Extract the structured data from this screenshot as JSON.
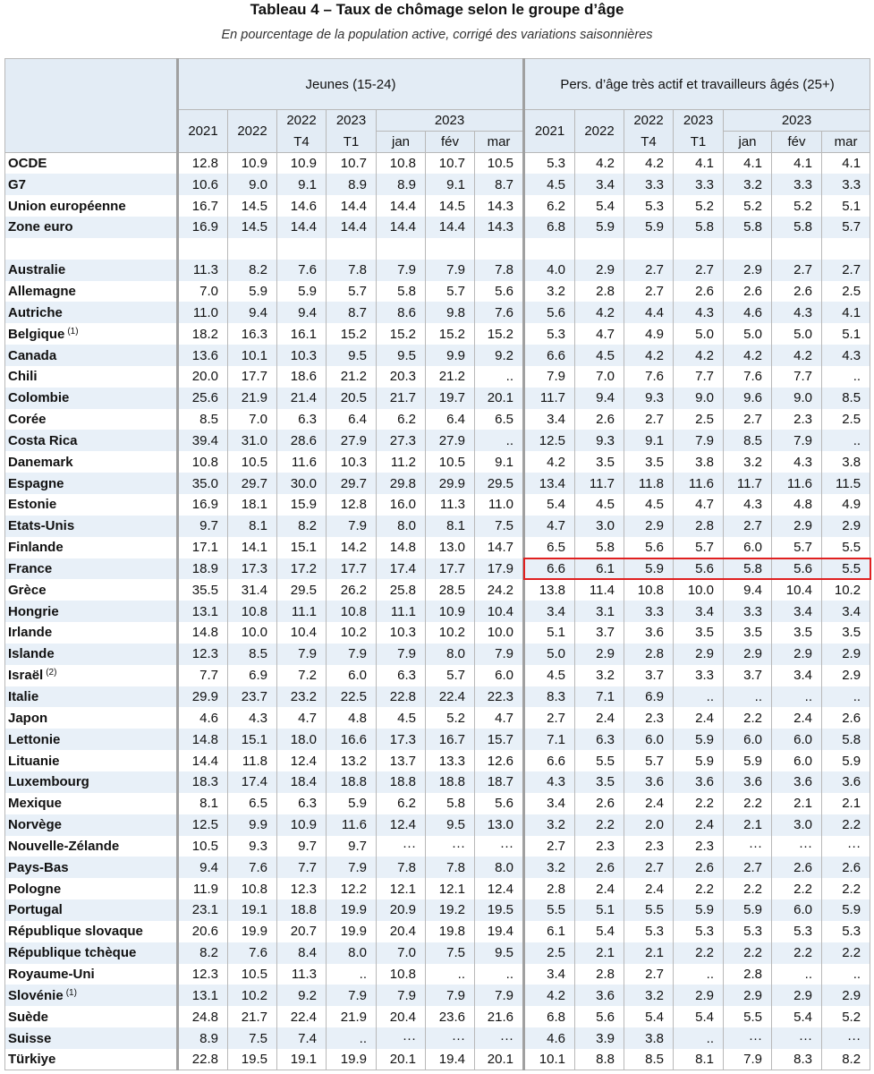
{
  "header": {
    "title": "Tableau 4 – Taux de chômage selon le groupe d’âge",
    "subtitle": "En pourcentage de la population active, corrigé des variations saisonnières"
  },
  "table": {
    "groups": [
      {
        "label": "Jeunes (15-24)",
        "columns": [
          {
            "year": "2021"
          },
          {
            "year": "2022"
          },
          {
            "year": "2022",
            "period": "T4"
          },
          {
            "year": "2023",
            "period": "T1"
          },
          {
            "year": "2023",
            "months": [
              "jan",
              "fév",
              "mar"
            ]
          }
        ]
      },
      {
        "label": "Pers. d’âge très actif et travailleurs âgés (25+)",
        "columns": [
          {
            "year": "2021"
          },
          {
            "year": "2022"
          },
          {
            "year": "2022",
            "period": "T4"
          },
          {
            "year": "2023",
            "period": "T1"
          },
          {
            "year": "2023",
            "months": [
              "jan",
              "fév",
              "mar"
            ]
          }
        ]
      }
    ],
    "aggregates": [
      {
        "label": "OCDE",
        "values": [
          "12.8",
          "10.9",
          "10.9",
          "10.7",
          "10.8",
          "10.7",
          "10.5",
          "5.3",
          "4.2",
          "4.2",
          "4.1",
          "4.1",
          "4.1",
          "4.1"
        ]
      },
      {
        "label": "G7",
        "values": [
          "10.6",
          "9.0",
          "9.1",
          "8.9",
          "8.9",
          "9.1",
          "8.7",
          "4.5",
          "3.4",
          "3.3",
          "3.3",
          "3.2",
          "3.3",
          "3.3"
        ]
      },
      {
        "label": "Union européenne",
        "values": [
          "16.7",
          "14.5",
          "14.6",
          "14.4",
          "14.4",
          "14.5",
          "14.3",
          "6.2",
          "5.4",
          "5.3",
          "5.2",
          "5.2",
          "5.2",
          "5.1"
        ]
      },
      {
        "label": "Zone euro",
        "values": [
          "16.9",
          "14.5",
          "14.4",
          "14.4",
          "14.4",
          "14.4",
          "14.3",
          "6.8",
          "5.9",
          "5.9",
          "5.8",
          "5.8",
          "5.8",
          "5.7"
        ]
      }
    ],
    "countries": [
      {
        "label": "Australie",
        "values": [
          "11.3",
          "8.2",
          "7.6",
          "7.8",
          "7.9",
          "7.9",
          "7.8",
          "4.0",
          "2.9",
          "2.7",
          "2.7",
          "2.9",
          "2.7",
          "2.7"
        ]
      },
      {
        "label": "Allemagne",
        "values": [
          "7.0",
          "5.9",
          "5.9",
          "5.7",
          "5.8",
          "5.7",
          "5.6",
          "3.2",
          "2.8",
          "2.7",
          "2.6",
          "2.6",
          "2.6",
          "2.5"
        ]
      },
      {
        "label": "Autriche",
        "values": [
          "11.0",
          "9.4",
          "9.4",
          "8.7",
          "8.6",
          "9.8",
          "7.6",
          "5.6",
          "4.2",
          "4.4",
          "4.3",
          "4.6",
          "4.3",
          "4.1"
        ]
      },
      {
        "label": "Belgique",
        "note": "(1)",
        "values": [
          "18.2",
          "16.3",
          "16.1",
          "15.2",
          "15.2",
          "15.2",
          "15.2",
          "5.3",
          "4.7",
          "4.9",
          "5.0",
          "5.0",
          "5.0",
          "5.1"
        ]
      },
      {
        "label": "Canada",
        "values": [
          "13.6",
          "10.1",
          "10.3",
          "9.5",
          "9.5",
          "9.9",
          "9.2",
          "6.6",
          "4.5",
          "4.2",
          "4.2",
          "4.2",
          "4.2",
          "4.3"
        ]
      },
      {
        "label": "Chili",
        "values": [
          "20.0",
          "17.7",
          "18.6",
          "21.2",
          "20.3",
          "21.2",
          "..",
          "7.9",
          "7.0",
          "7.6",
          "7.7",
          "7.6",
          "7.7",
          ".."
        ]
      },
      {
        "label": "Colombie",
        "values": [
          "25.6",
          "21.9",
          "21.4",
          "20.5",
          "21.7",
          "19.7",
          "20.1",
          "11.7",
          "9.4",
          "9.3",
          "9.0",
          "9.6",
          "9.0",
          "8.5"
        ]
      },
      {
        "label": "Corée",
        "values": [
          "8.5",
          "7.0",
          "6.3",
          "6.4",
          "6.2",
          "6.4",
          "6.5",
          "3.4",
          "2.6",
          "2.7",
          "2.5",
          "2.7",
          "2.3",
          "2.5"
        ]
      },
      {
        "label": "Costa Rica",
        "values": [
          "39.4",
          "31.0",
          "28.6",
          "27.9",
          "27.3",
          "27.9",
          "..",
          "12.5",
          "9.3",
          "9.1",
          "7.9",
          "8.5",
          "7.9",
          ".."
        ]
      },
      {
        "label": "Danemark",
        "values": [
          "10.8",
          "10.5",
          "11.6",
          "10.3",
          "11.2",
          "10.5",
          "9.1",
          "4.2",
          "3.5",
          "3.5",
          "3.8",
          "3.2",
          "4.3",
          "3.8"
        ]
      },
      {
        "label": "Espagne",
        "values": [
          "35.0",
          "29.7",
          "30.0",
          "29.7",
          "29.8",
          "29.9",
          "29.5",
          "13.4",
          "11.7",
          "11.8",
          "11.6",
          "11.7",
          "11.6",
          "11.5"
        ]
      },
      {
        "label": "Estonie",
        "values": [
          "16.9",
          "18.1",
          "15.9",
          "12.8",
          "16.0",
          "11.3",
          "11.0",
          "5.4",
          "4.5",
          "4.5",
          "4.7",
          "4.3",
          "4.8",
          "4.9"
        ]
      },
      {
        "label": "Etats-Unis",
        "values": [
          "9.7",
          "8.1",
          "8.2",
          "7.9",
          "8.0",
          "8.1",
          "7.5",
          "4.7",
          "3.0",
          "2.9",
          "2.8",
          "2.7",
          "2.9",
          "2.9"
        ]
      },
      {
        "label": "Finlande",
        "values": [
          "17.1",
          "14.1",
          "15.1",
          "14.2",
          "14.8",
          "13.0",
          "14.7",
          "6.5",
          "5.8",
          "5.6",
          "5.7",
          "6.0",
          "5.7",
          "5.5"
        ]
      },
      {
        "label": "France",
        "values": [
          "18.9",
          "17.3",
          "17.2",
          "17.7",
          "17.4",
          "17.7",
          "17.9",
          "6.6",
          "6.1",
          "5.9",
          "5.6",
          "5.8",
          "5.6",
          "5.5"
        ]
      },
      {
        "label": "Grèce",
        "values": [
          "35.5",
          "31.4",
          "29.5",
          "26.2",
          "25.8",
          "28.5",
          "24.2",
          "13.8",
          "11.4",
          "10.8",
          "10.0",
          "9.4",
          "10.4",
          "10.2"
        ]
      },
      {
        "label": "Hongrie",
        "values": [
          "13.1",
          "10.8",
          "11.1",
          "10.8",
          "11.1",
          "10.9",
          "10.4",
          "3.4",
          "3.1",
          "3.3",
          "3.4",
          "3.3",
          "3.4",
          "3.4"
        ]
      },
      {
        "label": "Irlande",
        "values": [
          "14.8",
          "10.0",
          "10.4",
          "10.2",
          "10.3",
          "10.2",
          "10.0",
          "5.1",
          "3.7",
          "3.6",
          "3.5",
          "3.5",
          "3.5",
          "3.5"
        ]
      },
      {
        "label": "Islande",
        "values": [
          "12.3",
          "8.5",
          "7.9",
          "7.9",
          "7.9",
          "8.0",
          "7.9",
          "5.0",
          "2.9",
          "2.8",
          "2.9",
          "2.9",
          "2.9",
          "2.9"
        ]
      },
      {
        "label": "Israël",
        "note": "(2)",
        "values": [
          "7.7",
          "6.9",
          "7.2",
          "6.0",
          "6.3",
          "5.7",
          "6.0",
          "4.5",
          "3.2",
          "3.7",
          "3.3",
          "3.7",
          "3.4",
          "2.9"
        ]
      },
      {
        "label": "Italie",
        "values": [
          "29.9",
          "23.7",
          "23.2",
          "22.5",
          "22.8",
          "22.4",
          "22.3",
          "8.3",
          "7.1",
          "6.9",
          "..",
          "..",
          "..",
          ".."
        ]
      },
      {
        "label": "Japon",
        "values": [
          "4.6",
          "4.3",
          "4.7",
          "4.8",
          "4.5",
          "5.2",
          "4.7",
          "2.7",
          "2.4",
          "2.3",
          "2.4",
          "2.2",
          "2.4",
          "2.6"
        ]
      },
      {
        "label": "Lettonie",
        "values": [
          "14.8",
          "15.1",
          "18.0",
          "16.6",
          "17.3",
          "16.7",
          "15.7",
          "7.1",
          "6.3",
          "6.0",
          "5.9",
          "6.0",
          "6.0",
          "5.8"
        ]
      },
      {
        "label": "Lituanie",
        "values": [
          "14.4",
          "11.8",
          "12.4",
          "13.2",
          "13.7",
          "13.3",
          "12.6",
          "6.6",
          "5.5",
          "5.7",
          "5.9",
          "5.9",
          "6.0",
          "5.9"
        ]
      },
      {
        "label": "Luxembourg",
        "values": [
          "18.3",
          "17.4",
          "18.4",
          "18.8",
          "18.8",
          "18.8",
          "18.7",
          "4.3",
          "3.5",
          "3.6",
          "3.6",
          "3.6",
          "3.6",
          "3.6"
        ]
      },
      {
        "label": "Mexique",
        "values": [
          "8.1",
          "6.5",
          "6.3",
          "5.9",
          "6.2",
          "5.8",
          "5.6",
          "3.4",
          "2.6",
          "2.4",
          "2.2",
          "2.2",
          "2.1",
          "2.1"
        ]
      },
      {
        "label": "Norvège",
        "values": [
          "12.5",
          "9.9",
          "10.9",
          "11.6",
          "12.4",
          "9.5",
          "13.0",
          "3.2",
          "2.2",
          "2.0",
          "2.4",
          "2.1",
          "3.0",
          "2.2"
        ]
      },
      {
        "label": "Nouvelle-Zélande",
        "values": [
          "10.5",
          "9.3",
          "9.7",
          "9.7",
          "···",
          "···",
          "···",
          "2.7",
          "2.3",
          "2.3",
          "2.3",
          "···",
          "···",
          "···"
        ]
      },
      {
        "label": "Pays-Bas",
        "values": [
          "9.4",
          "7.6",
          "7.7",
          "7.9",
          "7.8",
          "7.8",
          "8.0",
          "3.2",
          "2.6",
          "2.7",
          "2.6",
          "2.7",
          "2.6",
          "2.6"
        ]
      },
      {
        "label": "Pologne",
        "values": [
          "11.9",
          "10.8",
          "12.3",
          "12.2",
          "12.1",
          "12.1",
          "12.4",
          "2.8",
          "2.4",
          "2.4",
          "2.2",
          "2.2",
          "2.2",
          "2.2"
        ]
      },
      {
        "label": "Portugal",
        "values": [
          "23.1",
          "19.1",
          "18.8",
          "19.9",
          "20.9",
          "19.2",
          "19.5",
          "5.5",
          "5.1",
          "5.5",
          "5.9",
          "5.9",
          "6.0",
          "5.9"
        ]
      },
      {
        "label": "République slovaque",
        "values": [
          "20.6",
          "19.9",
          "20.7",
          "19.9",
          "20.4",
          "19.8",
          "19.4",
          "6.1",
          "5.4",
          "5.3",
          "5.3",
          "5.3",
          "5.3",
          "5.3"
        ]
      },
      {
        "label": "République tchèque",
        "values": [
          "8.2",
          "7.6",
          "8.4",
          "8.0",
          "7.0",
          "7.5",
          "9.5",
          "2.5",
          "2.1",
          "2.1",
          "2.2",
          "2.2",
          "2.2",
          "2.2"
        ]
      },
      {
        "label": "Royaume-Uni",
        "values": [
          "12.3",
          "10.5",
          "11.3",
          "..",
          "10.8",
          "..",
          "..",
          "3.4",
          "2.8",
          "2.7",
          "..",
          "2.8",
          "..",
          ".."
        ]
      },
      {
        "label": "Slovénie",
        "note": "(1)",
        "values": [
          "13.1",
          "10.2",
          "9.2",
          "7.9",
          "7.9",
          "7.9",
          "7.9",
          "4.2",
          "3.6",
          "3.2",
          "2.9",
          "2.9",
          "2.9",
          "2.9"
        ]
      },
      {
        "label": "Suède",
        "values": [
          "24.8",
          "21.7",
          "22.4",
          "21.9",
          "20.4",
          "23.6",
          "21.6",
          "6.8",
          "5.6",
          "5.4",
          "5.4",
          "5.5",
          "5.4",
          "5.2"
        ]
      },
      {
        "label": "Suisse",
        "values": [
          "8.9",
          "7.5",
          "7.4",
          "..",
          "···",
          "···",
          "···",
          "4.6",
          "3.9",
          "3.8",
          "..",
          "···",
          "···",
          "···"
        ]
      },
      {
        "label": "Türkiye",
        "values": [
          "22.8",
          "19.5",
          "19.1",
          "19.9",
          "20.1",
          "19.4",
          "20.1",
          "10.1",
          "8.8",
          "8.5",
          "8.1",
          "7.9",
          "8.3",
          "8.2"
        ]
      }
    ],
    "highlight": {
      "country_row": 14,
      "group": 1
    }
  }
}
